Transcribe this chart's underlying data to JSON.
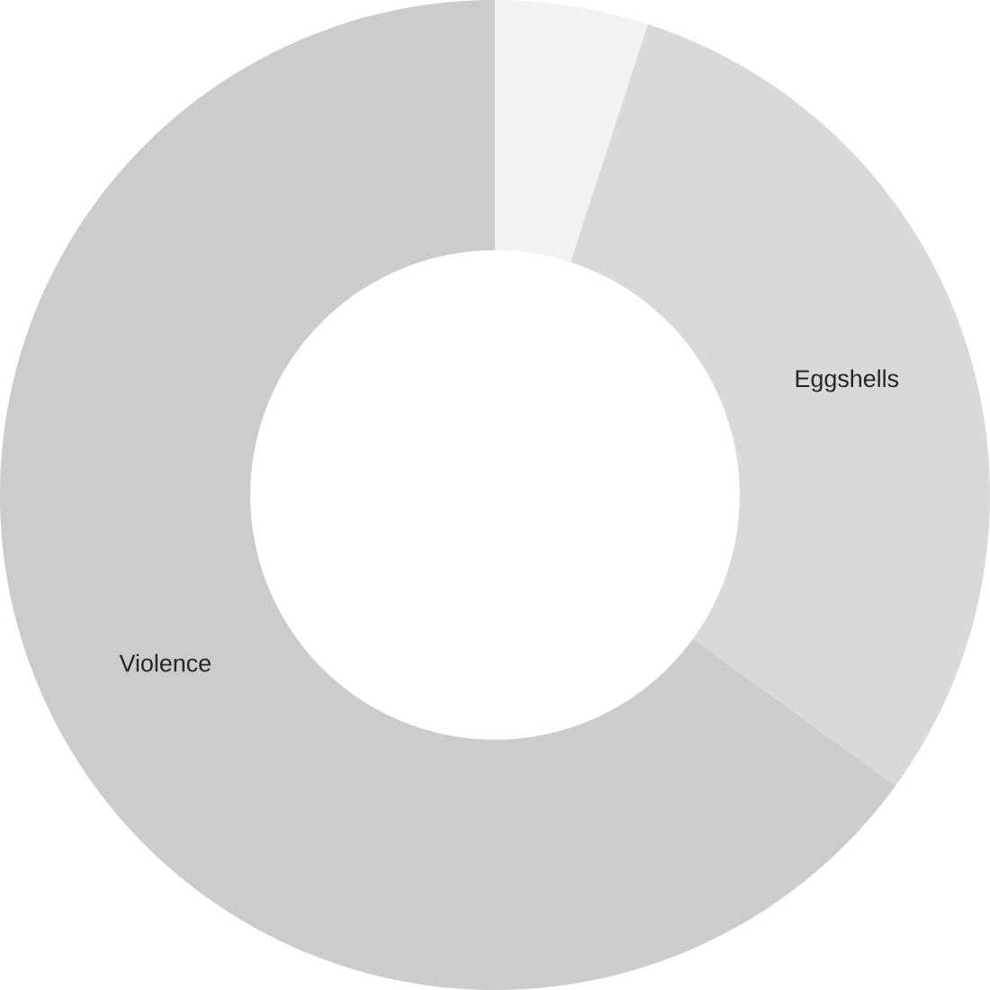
{
  "chart_data": {
    "type": "donut",
    "categories": [
      null,
      "Eggshells",
      "Violence"
    ],
    "values": [
      5,
      30,
      65
    ],
    "colors": [
      "#f2f2f2",
      "#d9d9d9",
      "#cccccc"
    ]
  }
}
